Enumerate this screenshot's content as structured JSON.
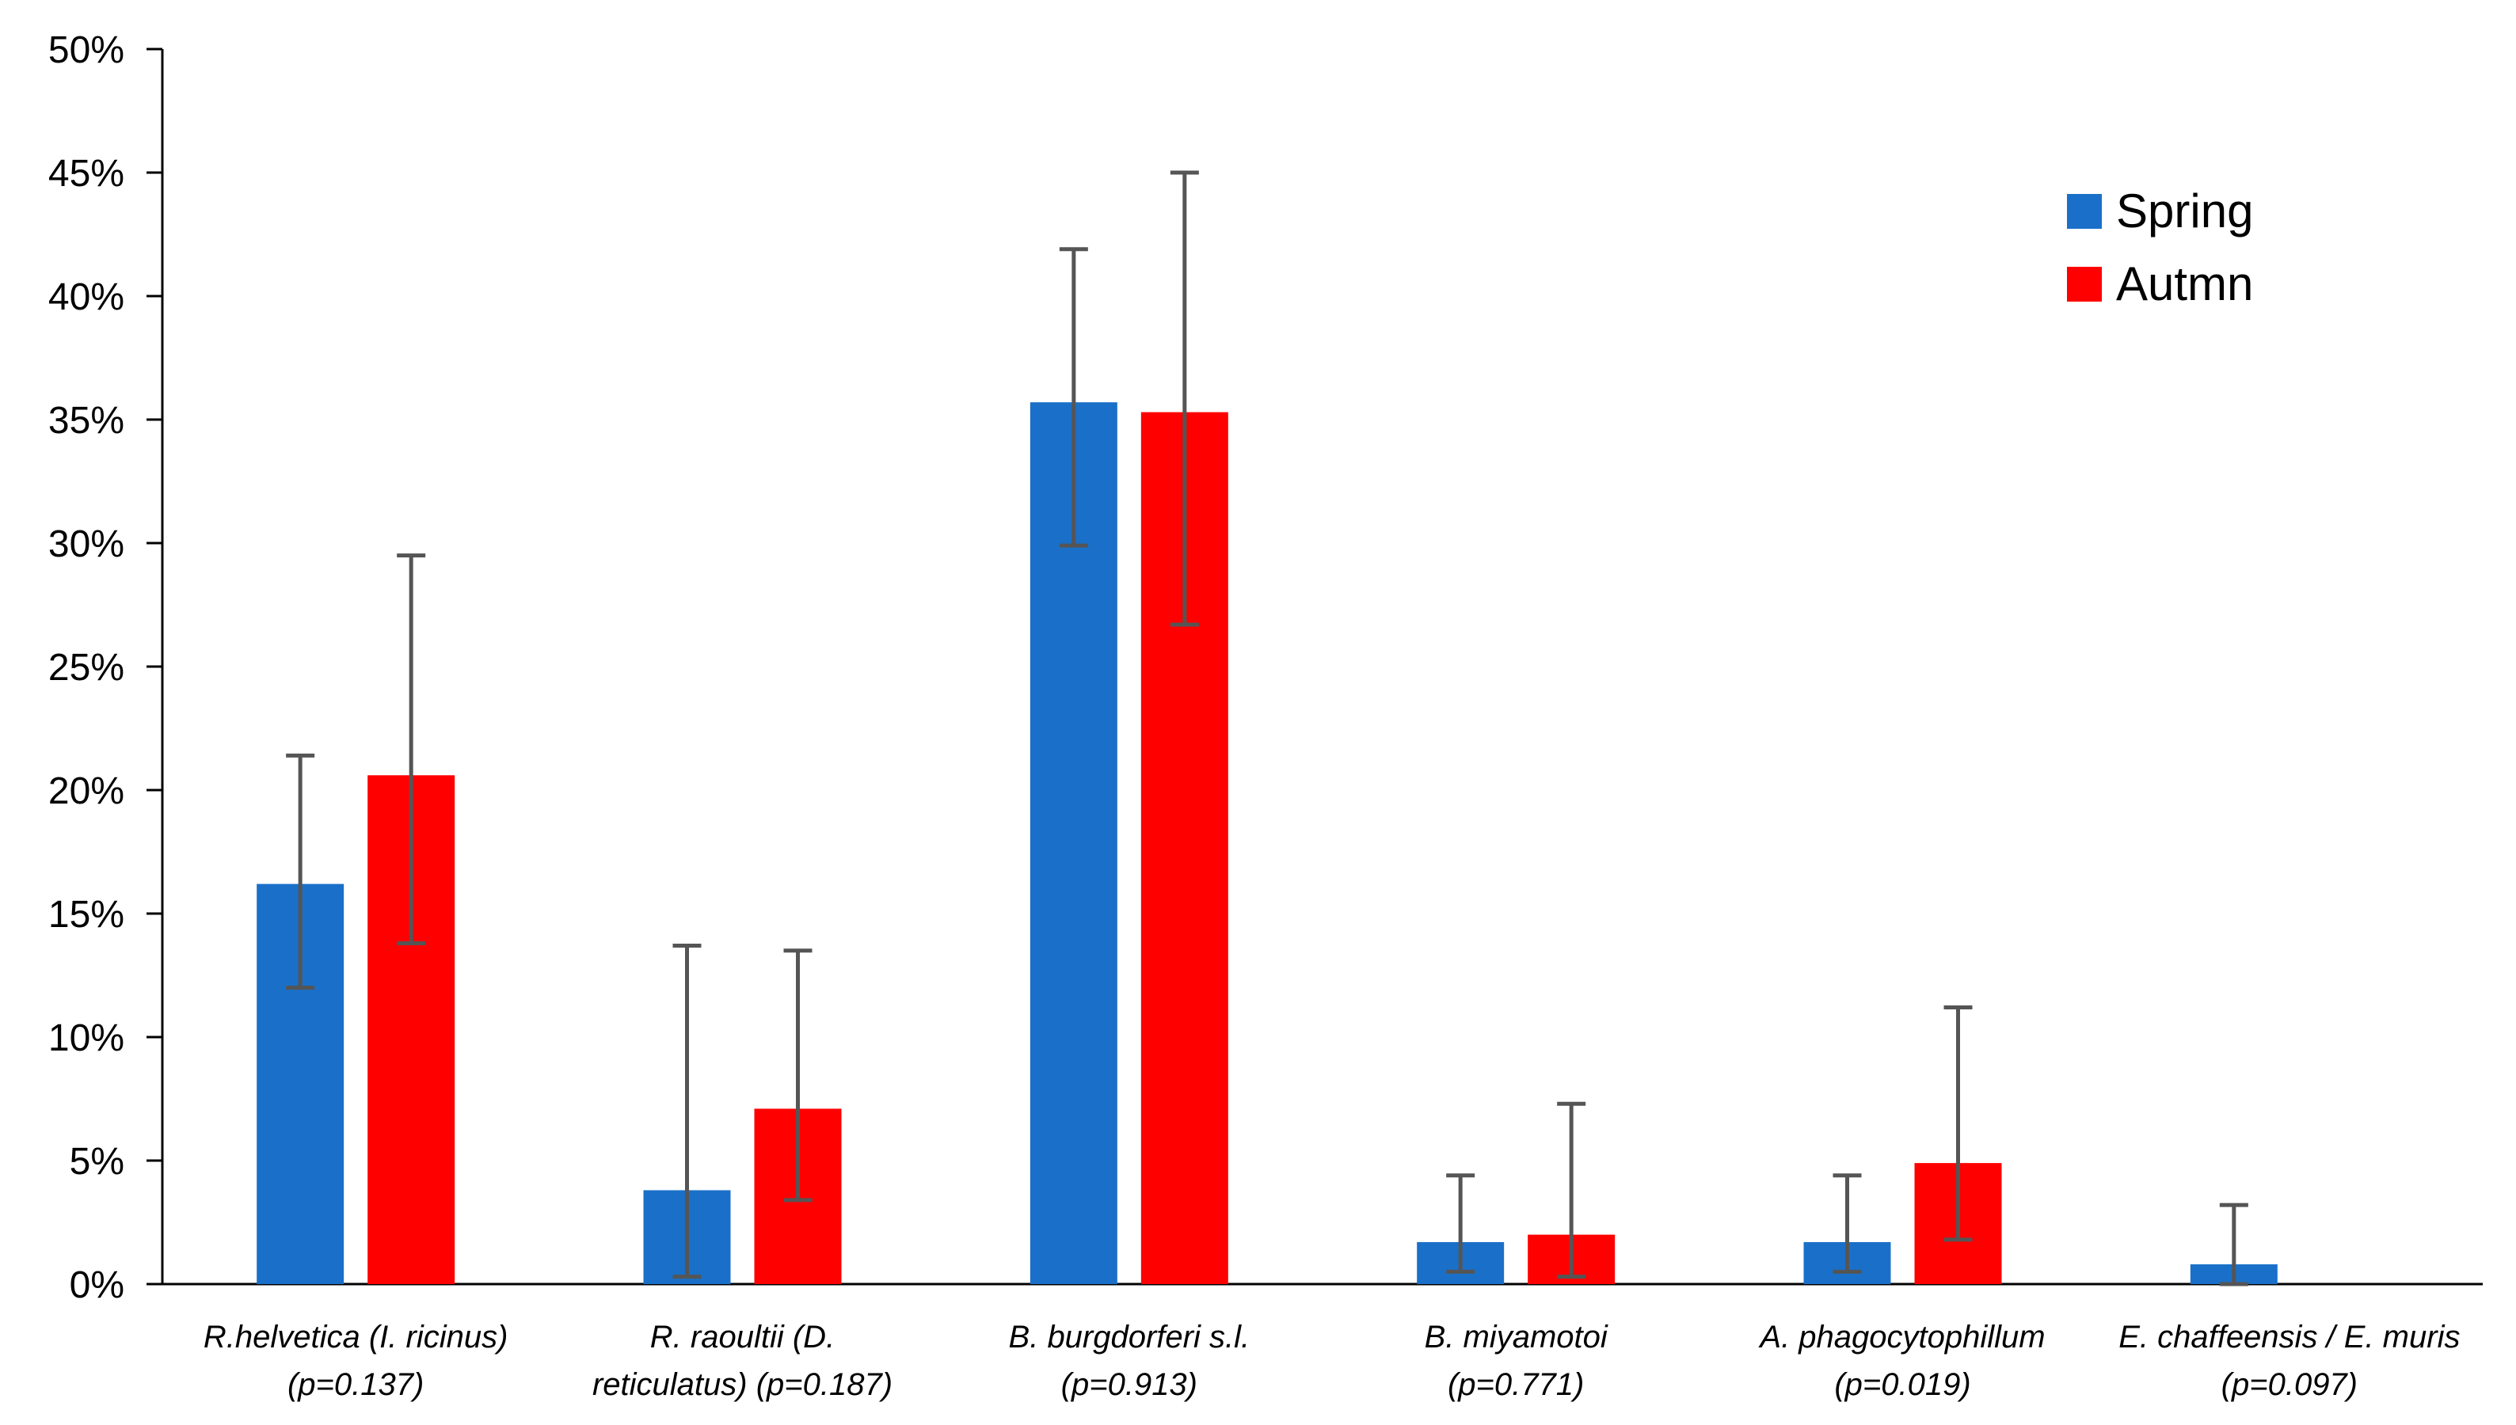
{
  "chart_data": {
    "type": "bar",
    "title": "",
    "xlabel": "",
    "ylabel": "",
    "ylim": [
      0,
      50
    ],
    "yticks": [
      "0%",
      "5%",
      "10%",
      "15%",
      "20%",
      "25%",
      "30%",
      "35%",
      "40%",
      "45%",
      "50%"
    ],
    "categories": [
      [
        "R.helvetica (I. ricinus)",
        "(p=0.137)"
      ],
      [
        "R. raoultii (D.",
        "reticulatus) (p=0.187)"
      ],
      [
        "B. burgdorferi s.l.",
        "(p=0.913)"
      ],
      [
        "B. miyamotoi",
        "(p=0.771)"
      ],
      [
        "A. phagocytophillum",
        "(p=0.019)"
      ],
      [
        "E. chaffeensis / E. muris",
        "(p=0.097)"
      ]
    ],
    "series": [
      {
        "name": "Spring",
        "color": "#1a70c8",
        "values": [
          16.2,
          3.8,
          35.7,
          1.7,
          1.7,
          0.8
        ],
        "err_low": [
          12.0,
          0.3,
          29.9,
          0.5,
          0.5,
          0.0
        ],
        "err_high": [
          21.4,
          13.7,
          41.9,
          4.4,
          4.4,
          3.2
        ]
      },
      {
        "name": "Autmn",
        "color": "#ff0000",
        "values": [
          20.6,
          7.1,
          35.3,
          2.0,
          4.9,
          0.0
        ],
        "err_low": [
          13.8,
          3.4,
          26.7,
          0.3,
          1.8,
          null
        ],
        "err_high": [
          29.5,
          13.5,
          45.0,
          7.3,
          11.2,
          null
        ]
      }
    ],
    "legend": "top-right",
    "grid": false
  }
}
